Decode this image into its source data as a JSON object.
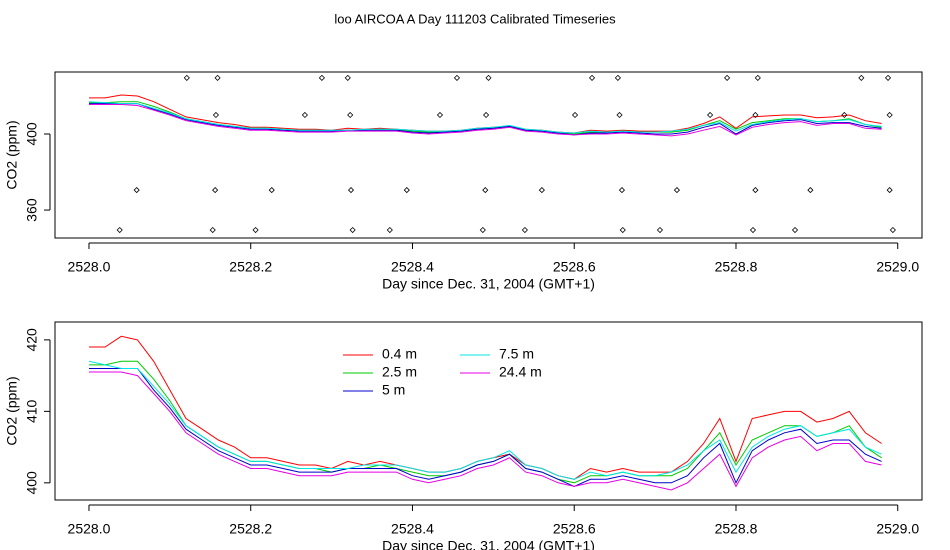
{
  "chart_data": [
    {
      "type": "line",
      "title": "loo AIRCOA A  Day 111203  Calibrated Timeseries",
      "xlabel": "Day since Dec. 31, 2004 (GMT+1)",
      "ylabel": "CO2 (ppm)",
      "xlim": [
        2527.958,
        2529.03
      ],
      "xticks": [
        {
          "value": 2528,
          "label": "2528.0"
        },
        2528.2,
        2528.4,
        2528.6,
        2528.8,
        {
          "value": 2529,
          "label": "2529.0"
        }
      ],
      "ylim": [
        345.3,
        432.6
      ],
      "yticks": [
        360,
        400
      ],
      "x": [
        2528.0,
        2528.02,
        2528.04,
        2528.06,
        2528.08,
        2528.1,
        2528.12,
        2528.14,
        2528.16,
        2528.18,
        2528.2,
        2528.22,
        2528.24,
        2528.26,
        2528.28,
        2528.3,
        2528.32,
        2528.34,
        2528.36,
        2528.38,
        2528.4,
        2528.42,
        2528.44,
        2528.46,
        2528.48,
        2528.5,
        2528.52,
        2528.54,
        2528.56,
        2528.58,
        2528.6,
        2528.62,
        2528.64,
        2528.66,
        2528.68,
        2528.7,
        2528.72,
        2528.74,
        2528.76,
        2528.78,
        2528.8,
        2528.82,
        2528.84,
        2528.86,
        2528.88,
        2528.9,
        2528.92,
        2528.94,
        2528.96,
        2528.98
      ],
      "series": [
        {
          "color": "#ff0000",
          "values": [
            419,
            419,
            420.5,
            420,
            417,
            413,
            409,
            407.5,
            406,
            405,
            403.5,
            403.5,
            403,
            402.5,
            402.5,
            402,
            403,
            402.5,
            403,
            402.5,
            402,
            401.5,
            401.5,
            402,
            403,
            403.5,
            404,
            402.5,
            402,
            401,
            400.5,
            402,
            401.5,
            402,
            401.5,
            401.5,
            401.5,
            403,
            405.5,
            409,
            403,
            409,
            409.5,
            410,
            410,
            408.5,
            409,
            410,
            407,
            405.5
          ]
        },
        {
          "color": "#00cc00",
          "values": [
            416.5,
            416.5,
            417,
            417,
            414.5,
            411.5,
            408,
            406.5,
            405,
            404,
            403,
            403,
            402.5,
            402,
            402,
            401.5,
            402,
            402,
            402.5,
            402,
            401.5,
            401,
            401,
            401.5,
            402.5,
            403,
            404,
            402,
            401.5,
            400.5,
            400,
            401,
            401,
            401.5,
            401,
            401,
            401,
            402,
            404.5,
            407,
            402.5,
            406,
            407,
            408,
            408,
            406.5,
            407,
            408,
            405,
            403.5
          ]
        },
        {
          "color": "#0000cc",
          "values": [
            416,
            416,
            416,
            416,
            413,
            410.5,
            407.5,
            406,
            404.5,
            403.5,
            402.5,
            402.5,
            402,
            401.5,
            401.5,
            401.5,
            402,
            402,
            402,
            402,
            401,
            400.5,
            401,
            401.5,
            402.5,
            403,
            404,
            402,
            401.5,
            400.5,
            399.5,
            400.5,
            400.5,
            401,
            400.5,
            400,
            400,
            401,
            403.5,
            405.5,
            400,
            404.5,
            406,
            407,
            407.5,
            405.5,
            406,
            406,
            404,
            403
          ]
        },
        {
          "color": "#00e5e5",
          "values": [
            417,
            416.5,
            416,
            416,
            413.5,
            411,
            408,
            406.5,
            405,
            404,
            403,
            403,
            402.5,
            402,
            402,
            402,
            402,
            402.5,
            402.5,
            402.5,
            402,
            401.5,
            401.5,
            402,
            403,
            403.5,
            404.5,
            402.5,
            402,
            401,
            400.5,
            401.5,
            401,
            401.5,
            401,
            401,
            401.5,
            402.5,
            404.5,
            406,
            401.5,
            405,
            406.5,
            407.5,
            408,
            406.5,
            407,
            407.5,
            405,
            404
          ]
        },
        {
          "color": "#e500e5",
          "values": [
            415.5,
            415.5,
            415.5,
            415,
            412.5,
            410,
            407,
            405.5,
            404,
            403,
            402,
            402,
            401.5,
            401,
            401,
            401,
            401.5,
            401.5,
            401.5,
            401.5,
            400.5,
            400,
            400.5,
            401,
            402,
            402.5,
            403.5,
            401.5,
            401,
            400,
            399.5,
            400,
            400,
            400.5,
            400,
            399.5,
            399,
            400,
            402,
            404,
            399.5,
            403.5,
            405,
            406,
            406.5,
            404.5,
            405.5,
            405.5,
            403,
            402.5
          ]
        }
      ],
      "points": {
        "color": "#000000",
        "x": [
          2528.121,
          2528.159,
          2528.288,
          2528.32,
          2528.455,
          2528.494,
          2528.622,
          2528.654,
          2528.789,
          2528.827,
          2528.955,
          2528.988,
          2528.157,
          2528.267,
          2528.323,
          2528.434,
          2528.491,
          2528.601,
          2528.656,
          2528.768,
          2528.824,
          2528.934,
          2528.99,
          2528.059,
          2528.156,
          2528.226,
          2528.324,
          2528.393,
          2528.49,
          2528.56,
          2528.659,
          2528.727,
          2528.824,
          2528.892,
          2528.99,
          2528.038,
          2528.153,
          2528.206,
          2528.326,
          2528.372,
          2528.487,
          2528.539,
          2528.66,
          2528.706,
          2528.821,
          2528.873,
          2528.994
        ],
        "values": [
          429.5,
          429.5,
          429.5,
          429.5,
          429.5,
          429.5,
          429.5,
          429.5,
          429.5,
          429.5,
          429.5,
          429.5,
          410,
          410,
          410,
          410,
          410,
          410,
          410,
          410,
          410,
          410,
          410,
          370.5,
          370.5,
          370.5,
          370.5,
          370.5,
          370.5,
          370.5,
          370.5,
          370.5,
          370.5,
          370.5,
          370.5,
          349.5,
          349.5,
          349.5,
          349.5,
          349.5,
          349.5,
          349.5,
          349.5,
          349.5,
          349.5,
          349.5,
          349.5
        ]
      }
    },
    {
      "type": "line",
      "xlabel": "Day since Dec. 31, 2004 (GMT+1)",
      "ylabel": "CO2 (ppm)",
      "xlim": [
        2527.958,
        2529.03
      ],
      "xticks": [
        {
          "value": 2528,
          "label": "2528.0"
        },
        2528.2,
        2528.4,
        2528.6,
        2528.8,
        {
          "value": 2529,
          "label": "2529.0"
        }
      ],
      "ylim": [
        397.6,
        422.5
      ],
      "yticks": [
        400,
        410,
        420
      ],
      "legend": "top",
      "x": [
        2528.0,
        2528.02,
        2528.04,
        2528.06,
        2528.08,
        2528.1,
        2528.12,
        2528.14,
        2528.16,
        2528.18,
        2528.2,
        2528.22,
        2528.24,
        2528.26,
        2528.28,
        2528.3,
        2528.32,
        2528.34,
        2528.36,
        2528.38,
        2528.4,
        2528.42,
        2528.44,
        2528.46,
        2528.48,
        2528.5,
        2528.52,
        2528.54,
        2528.56,
        2528.58,
        2528.6,
        2528.62,
        2528.64,
        2528.66,
        2528.68,
        2528.7,
        2528.72,
        2528.74,
        2528.76,
        2528.78,
        2528.8,
        2528.82,
        2528.84,
        2528.86,
        2528.88,
        2528.9,
        2528.92,
        2528.94,
        2528.96,
        2528.98
      ],
      "series": [
        {
          "name": "0.4 m",
          "color": "#ff0000",
          "values": [
            419,
            419,
            420.5,
            420,
            417,
            413,
            409,
            407.5,
            406,
            405,
            403.5,
            403.5,
            403,
            402.5,
            402.5,
            402,
            403,
            402.5,
            403,
            402.5,
            402,
            401.5,
            401.5,
            402,
            403,
            403.5,
            404,
            402.5,
            402,
            401,
            400.5,
            402,
            401.5,
            402,
            401.5,
            401.5,
            401.5,
            403,
            405.5,
            409,
            403,
            409,
            409.5,
            410,
            410,
            408.5,
            409,
            410,
            407,
            405.5
          ]
        },
        {
          "name": "2.5 m",
          "color": "#00cc00",
          "values": [
            416.5,
            416.5,
            417,
            417,
            414.5,
            411.5,
            408,
            406.5,
            405,
            404,
            403,
            403,
            402.5,
            402,
            402,
            401.5,
            402,
            402,
            402.5,
            402,
            401.5,
            401,
            401,
            401.5,
            402.5,
            403,
            404,
            402,
            401.5,
            400.5,
            400,
            401,
            401,
            401.5,
            401,
            401,
            401,
            402,
            404.5,
            407,
            402.5,
            406,
            407,
            408,
            408,
            406.5,
            407,
            408,
            405,
            403.5
          ]
        },
        {
          "name": "5 m",
          "color": "#0000cc",
          "values": [
            416,
            416,
            416,
            416,
            413,
            410.5,
            407.5,
            406,
            404.5,
            403.5,
            402.5,
            402.5,
            402,
            401.5,
            401.5,
            401.5,
            402,
            402,
            402,
            402,
            401,
            400.5,
            401,
            401.5,
            402.5,
            403,
            404,
            402,
            401.5,
            400.5,
            399.5,
            400.5,
            400.5,
            401,
            400.5,
            400,
            400,
            401,
            403.5,
            405.5,
            400,
            404.5,
            406,
            407,
            407.5,
            405.5,
            406,
            406,
            404,
            403
          ]
        },
        {
          "name": "7.5 m",
          "color": "#00e5e5",
          "values": [
            417,
            416.5,
            416,
            416,
            413.5,
            411,
            408,
            406.5,
            405,
            404,
            403,
            403,
            402.5,
            402,
            402,
            402,
            402,
            402.5,
            402.5,
            402.5,
            402,
            401.5,
            401.5,
            402,
            403,
            403.5,
            404.5,
            402.5,
            402,
            401,
            400.5,
            401.5,
            401,
            401.5,
            401,
            401,
            401.5,
            402.5,
            404.5,
            406,
            401.5,
            405,
            406.5,
            407.5,
            408,
            406.5,
            407,
            407.5,
            405,
            404
          ]
        },
        {
          "name": "24.4 m",
          "color": "#e500e5",
          "values": [
            415.5,
            415.5,
            415.5,
            415,
            412.5,
            410,
            407,
            405.5,
            404,
            403,
            402,
            402,
            401.5,
            401,
            401,
            401,
            401.5,
            401.5,
            401.5,
            401.5,
            400.5,
            400,
            400.5,
            401,
            402,
            402.5,
            403.5,
            401.5,
            401,
            400,
            399.5,
            400,
            400,
            400.5,
            400,
            399.5,
            399,
            400,
            402,
            404,
            399.5,
            403.5,
            405,
            406,
            406.5,
            404.5,
            405.5,
            405.5,
            403,
            402.5
          ]
        }
      ]
    }
  ]
}
